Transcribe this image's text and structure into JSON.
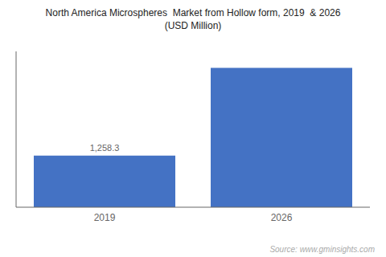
{
  "chart_data": {
    "type": "bar",
    "title": "North America Microspheres  Market from Hollow form, 2019  & 2026",
    "subtitle": "(USD Million)",
    "categories": [
      "2019",
      "2026"
    ],
    "values": [
      1258.3,
      3400
    ],
    "value_labels": [
      "1,258.3",
      null
    ],
    "data_labels": true,
    "color": "#4472C4",
    "ylim": [
      0,
      3800
    ],
    "tick_labels": "x",
    "annotations": [
      "Source: www.gminsights.com"
    ]
  }
}
